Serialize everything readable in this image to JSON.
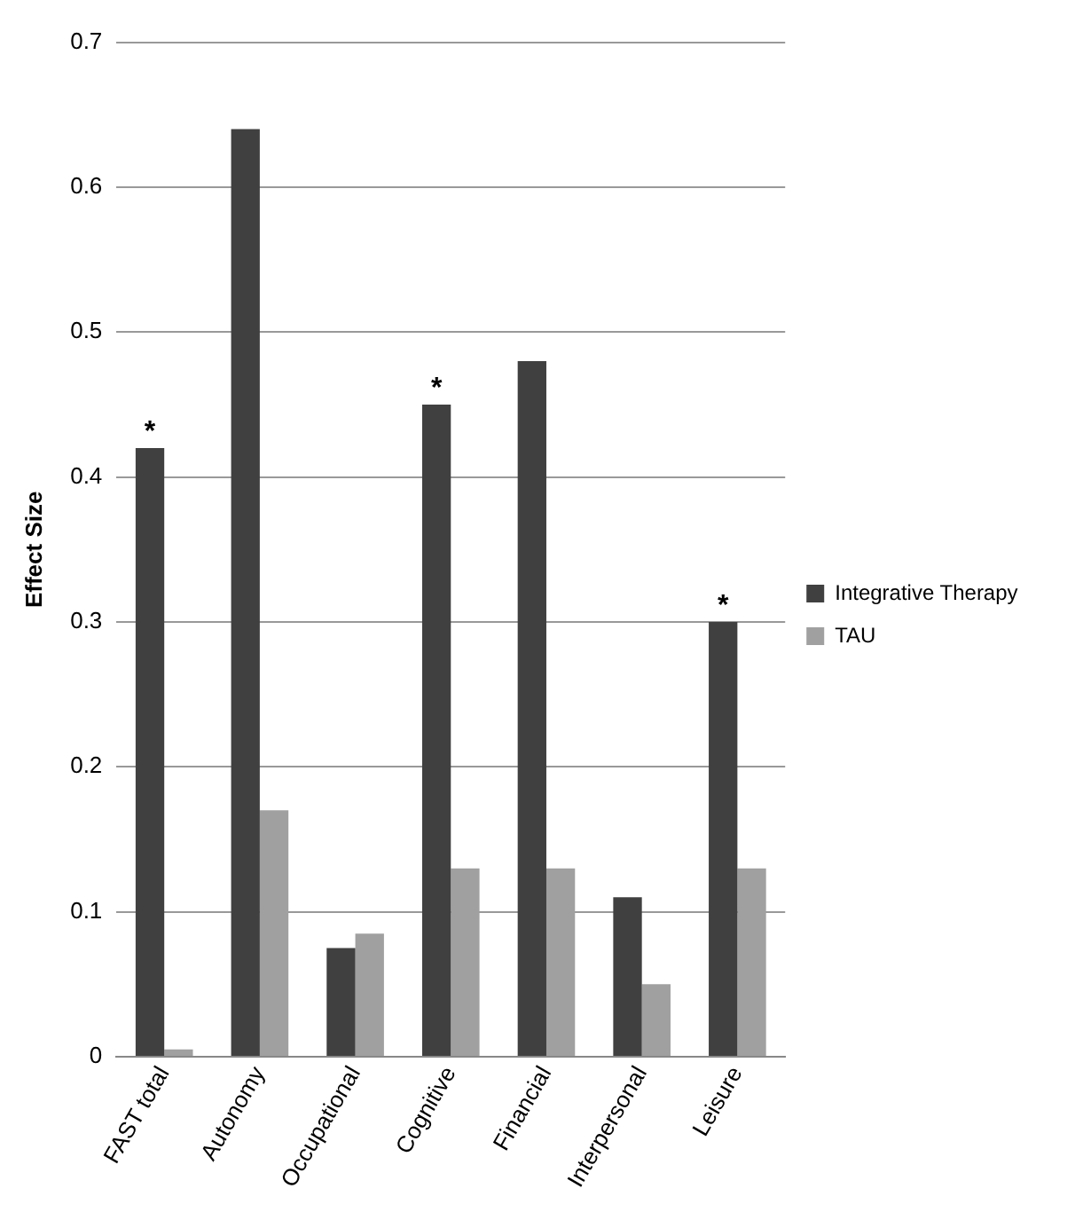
{
  "chart_data": {
    "type": "bar",
    "ylabel": "Effect Size",
    "categories": [
      "FAST total",
      "Autonomy",
      "Occupational",
      "Cognitive",
      "Financial",
      "Interpersonal",
      "Leisure"
    ],
    "series": [
      {
        "name": "Integrative Therapy",
        "color": "#404040",
        "values": [
          0.42,
          0.64,
          0.075,
          0.45,
          0.48,
          0.11,
          0.3
        ]
      },
      {
        "name": "TAU",
        "color": "#a0a0a0",
        "values": [
          0.005,
          0.17,
          0.085,
          0.13,
          0.13,
          0.05,
          0.13
        ]
      }
    ],
    "ylim": [
      0,
      0.7
    ],
    "yticks": [
      0,
      0.1,
      0.2,
      0.3,
      0.4,
      0.5,
      0.6,
      0.7
    ],
    "grid": "y",
    "legend": "right",
    "annotations": [
      {
        "text": "*",
        "x": "FAST total",
        "y": 0.42
      },
      {
        "text": "*",
        "x": "Cognitive",
        "y": 0.45
      },
      {
        "text": "*",
        "x": "Leisure",
        "y": 0.3
      }
    ]
  }
}
